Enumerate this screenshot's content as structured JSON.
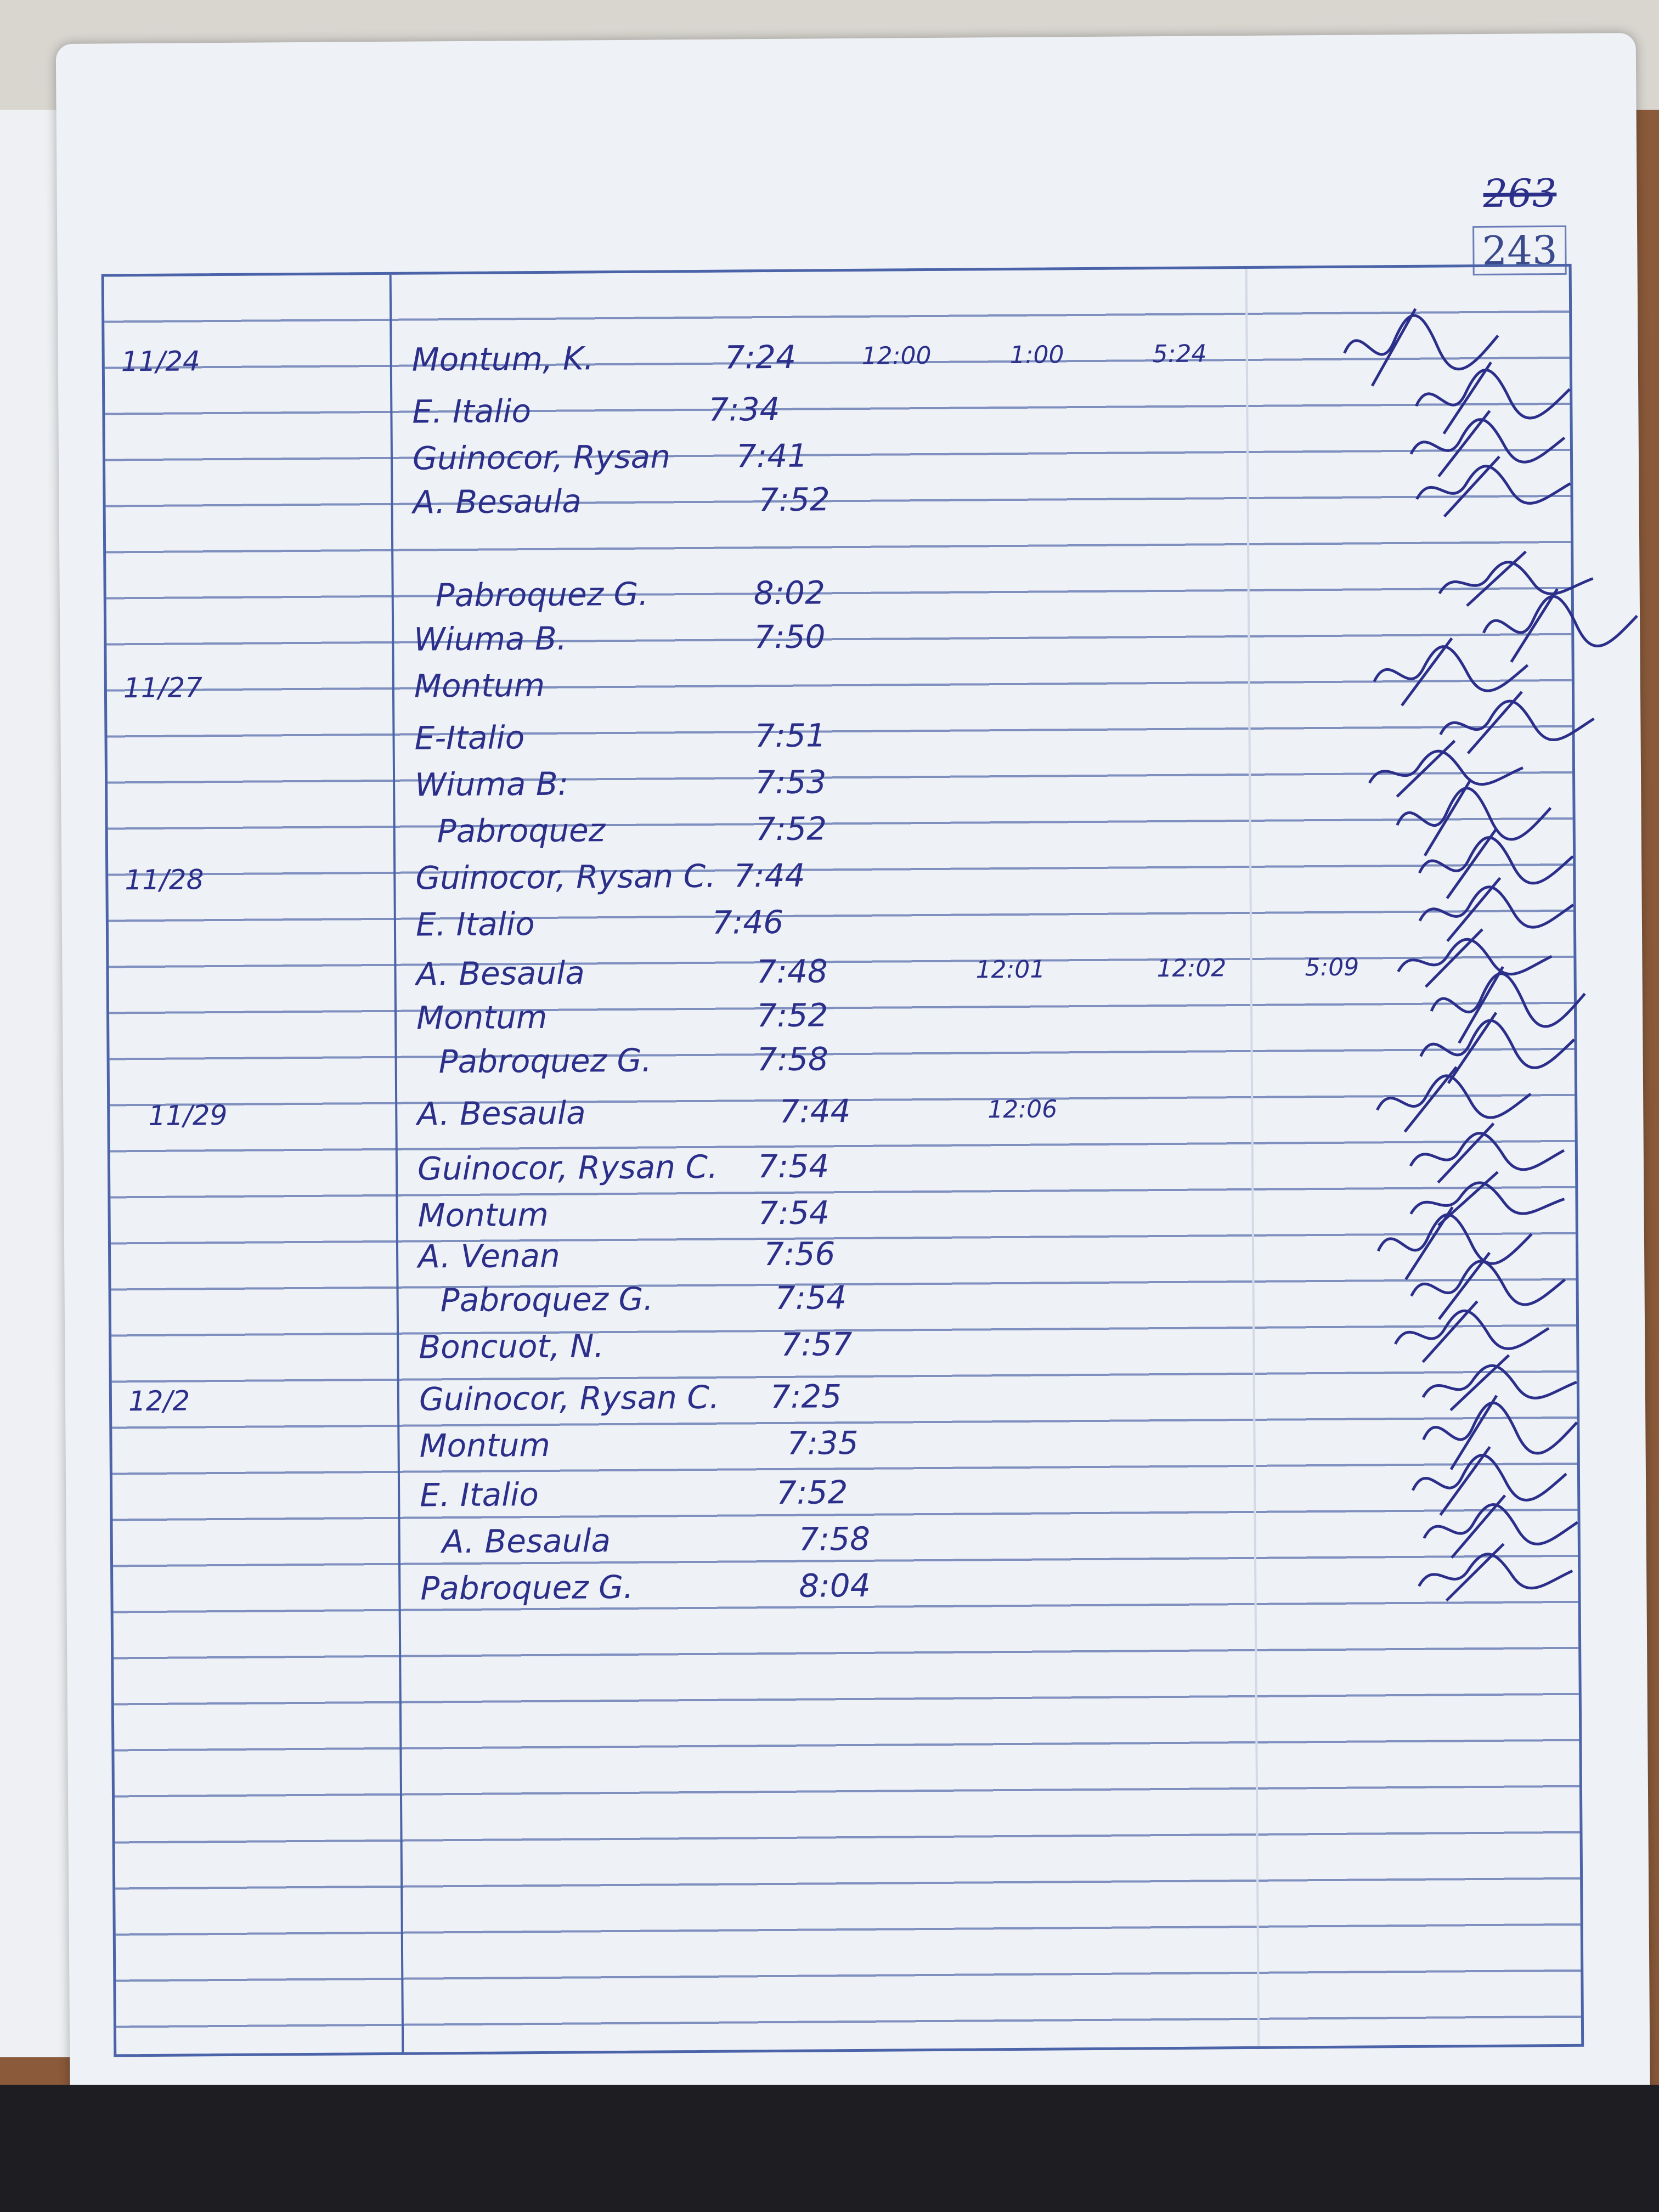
{
  "page_number": {
    "crossed_out": "263",
    "current": "243"
  },
  "ink_color": "#2b2f8a",
  "rule_color": "#4b63a8",
  "log": [
    {
      "date": "11/24",
      "entries": [
        {
          "name": "Montum, K.",
          "time_in": "7:24",
          "extra_times": [
            "12:00",
            "1:00",
            "5:24"
          ],
          "signed": true
        },
        {
          "name": "E. Italio",
          "time_in": "7:34",
          "signed": true
        },
        {
          "name": "Guinocor, Rysan",
          "time_in": "7:41",
          "signed": true
        },
        {
          "name": "A. Besaula",
          "time_in": "7:52",
          "signed": true
        },
        {
          "name": "Pabroquez G.",
          "time_in": "8:02",
          "signed": true
        },
        {
          "name": "Wiuma B.",
          "time_in": "7:50",
          "signed": true
        }
      ]
    },
    {
      "date": "11/27",
      "entries": [
        {
          "name": "Montum",
          "time_in": "",
          "signed": true
        },
        {
          "name": "E-Italio",
          "time_in": "7:51",
          "signed": true
        },
        {
          "name": "Wiuma B:",
          "time_in": "7:53",
          "signed": true
        },
        {
          "name": "Pabroquez",
          "time_in": "7:52",
          "signed": true
        }
      ]
    },
    {
      "date": "11/28",
      "entries": [
        {
          "name": "Guinocor, Rysan C.",
          "time_in": "7:44",
          "signed": true
        },
        {
          "name": "E. Italio",
          "time_in": "7:46",
          "signed": true
        },
        {
          "name": "A. Besaula",
          "time_in": "7:48",
          "extra_times": [
            "12:01",
            "12:02",
            "5:09"
          ],
          "signed": true
        },
        {
          "name": "Montum",
          "time_in": "7:52",
          "signed": true
        },
        {
          "name": "Pabroquez G.",
          "time_in": "7:58",
          "signed": true
        }
      ]
    },
    {
      "date": "11/29",
      "entries": [
        {
          "name": "A. Besaula",
          "time_in": "7:44",
          "extra_times": [
            "12:06"
          ],
          "signed": true
        },
        {
          "name": "Guinocor, Rysan C.",
          "time_in": "7:54",
          "signed": true
        },
        {
          "name": "Montum",
          "time_in": "7:54",
          "signed": true
        },
        {
          "name": "A. Venan",
          "time_in": "7:56",
          "signed": true
        },
        {
          "name": "Pabroquez G.",
          "time_in": "7:54",
          "signed": true
        },
        {
          "name": "Boncuot, N.",
          "time_in": "7:57",
          "signed": true
        }
      ]
    },
    {
      "date": "12/2",
      "entries": [
        {
          "name": "Guinocor, Rysan C.",
          "time_in": "7:25",
          "signed": true
        },
        {
          "name": "Montum",
          "time_in": "7:35",
          "signed": true
        },
        {
          "name": "E. Italio",
          "time_in": "7:52",
          "signed": true
        },
        {
          "name": "A. Besaula",
          "time_in": "7:58",
          "signed": true
        },
        {
          "name": "Pabroquez G.",
          "time_in": "8:04",
          "signed": true
        }
      ]
    }
  ]
}
